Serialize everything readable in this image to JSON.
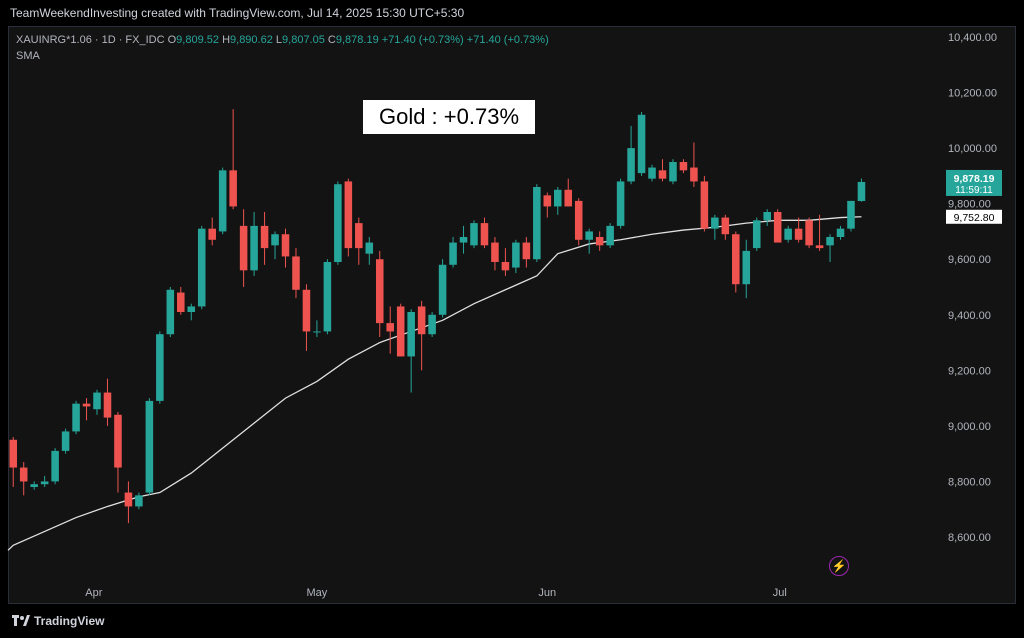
{
  "header": {
    "watermark": "TeamWeekendInvesting created with TradingView.com, Jul 14, 2025 15:30 UTC+5:30"
  },
  "legend": {
    "symbol": "XAUINRG*1.06 · 1D · FX_IDC",
    "o_label": "O",
    "o_value": "9,809.52",
    "h_label": "H",
    "h_value": "9,890.62",
    "l_label": "L",
    "l_value": "9,807.05",
    "c_label": "C",
    "c_value": "9,878.19",
    "change1": "+71.40 (+0.73%)",
    "change2": "+71.40 (+0.73%)",
    "indicator": "SMA"
  },
  "title_box": "Gold : +0.73%",
  "price_badge": {
    "price": "9,878.19",
    "countdown": "11:59:11",
    "sma_value": "9,752.80"
  },
  "footer": {
    "brand": "TradingView"
  },
  "colors": {
    "up": "#26a69a",
    "down": "#ef5350",
    "sma": "#e0e0e0"
  },
  "chart_data": {
    "type": "candlestick",
    "y_ticks": [
      "10,400.00",
      "10,200.00",
      "10,000.00",
      "9,800.00",
      "9,600.00",
      "9,400.00",
      "9,200.00",
      "9,000.00",
      "8,800.00",
      "8,600.00"
    ],
    "y_tick_values": [
      10400,
      10200,
      10000,
      9800,
      9600,
      9400,
      9200,
      9000,
      8800,
      8600
    ],
    "x_labels": [
      "Apr",
      "May",
      "Jun",
      "Jul"
    ],
    "x_label_index": [
      7.7,
      29.0,
      51.0,
      73.2
    ],
    "ylim": [
      8460,
      10440
    ],
    "n_slots": 89,
    "candles": [
      [
        0,
        8950,
        8960,
        8780,
        8850
      ],
      [
        1,
        8850,
        8870,
        8750,
        8800
      ],
      [
        2,
        8780,
        8800,
        8770,
        8790
      ],
      [
        3,
        8790,
        8820,
        8780,
        8800
      ],
      [
        4,
        8800,
        8920,
        8790,
        8910
      ],
      [
        5,
        8910,
        8990,
        8900,
        8980
      ],
      [
        6,
        8980,
        9090,
        8970,
        9080
      ],
      [
        7,
        9080,
        9100,
        9020,
        9070
      ],
      [
        8,
        9060,
        9130,
        9040,
        9120
      ],
      [
        9,
        9120,
        9170,
        9000,
        9030
      ],
      [
        10,
        9040,
        9050,
        8760,
        8850
      ],
      [
        11,
        8760,
        8800,
        8650,
        8710
      ],
      [
        12,
        8710,
        8760,
        8700,
        8750
      ],
      [
        13,
        8760,
        9100,
        8750,
        9090
      ],
      [
        14,
        9090,
        9340,
        9080,
        9330
      ],
      [
        15,
        9330,
        9500,
        9320,
        9490
      ],
      [
        16,
        9480,
        9500,
        9400,
        9410
      ],
      [
        17,
        9410,
        9440,
        9380,
        9430
      ],
      [
        18,
        9430,
        9720,
        9420,
        9710
      ],
      [
        19,
        9710,
        9750,
        9650,
        9670
      ],
      [
        20,
        9700,
        9930,
        9690,
        9920
      ],
      [
        21,
        9920,
        10140,
        9780,
        9790
      ],
      [
        22,
        9720,
        9780,
        9500,
        9560
      ],
      [
        23,
        9560,
        9770,
        9540,
        9720
      ],
      [
        24,
        9720,
        9770,
        9580,
        9640
      ],
      [
        25,
        9650,
        9700,
        9600,
        9690
      ],
      [
        26,
        9690,
        9710,
        9570,
        9610
      ],
      [
        27,
        9610,
        9640,
        9460,
        9490
      ],
      [
        28,
        9490,
        9510,
        9270,
        9340
      ],
      [
        29,
        9340,
        9380,
        9320,
        9340
      ],
      [
        30,
        9340,
        9600,
        9330,
        9590
      ],
      [
        31,
        9590,
        9880,
        9580,
        9870
      ],
      [
        32,
        9880,
        9890,
        9610,
        9640
      ],
      [
        33,
        9730,
        9750,
        9580,
        9640
      ],
      [
        34,
        9620,
        9680,
        9580,
        9660
      ],
      [
        35,
        9600,
        9630,
        9320,
        9370
      ],
      [
        36,
        9370,
        9430,
        9260,
        9340
      ],
      [
        37,
        9430,
        9440,
        9250,
        9250
      ],
      [
        38,
        9250,
        9420,
        9120,
        9410
      ],
      [
        39,
        9430,
        9450,
        9200,
        9330
      ],
      [
        40,
        9330,
        9410,
        9320,
        9400
      ],
      [
        41,
        9400,
        9600,
        9390,
        9580
      ],
      [
        42,
        9580,
        9680,
        9570,
        9660
      ],
      [
        43,
        9660,
        9720,
        9620,
        9680
      ],
      [
        44,
        9650,
        9740,
        9640,
        9730
      ],
      [
        45,
        9730,
        9750,
        9640,
        9650
      ],
      [
        46,
        9660,
        9680,
        9560,
        9590
      ],
      [
        47,
        9590,
        9640,
        9540,
        9560
      ],
      [
        48,
        9570,
        9670,
        9550,
        9660
      ],
      [
        49,
        9660,
        9680,
        9570,
        9600
      ],
      [
        50,
        9600,
        9870,
        9590,
        9860
      ],
      [
        51,
        9830,
        9840,
        9750,
        9790
      ],
      [
        52,
        9790,
        9860,
        9760,
        9850
      ],
      [
        53,
        9850,
        9890,
        9790,
        9790
      ],
      [
        54,
        9810,
        9820,
        9650,
        9670
      ],
      [
        55,
        9670,
        9710,
        9620,
        9700
      ],
      [
        56,
        9680,
        9700,
        9630,
        9650
      ],
      [
        57,
        9650,
        9730,
        9640,
        9720
      ],
      [
        58,
        9720,
        9890,
        9710,
        9880
      ],
      [
        59,
        9880,
        10080,
        9870,
        10000
      ],
      [
        60,
        9910,
        10130,
        9900,
        10120
      ],
      [
        61,
        9890,
        9940,
        9880,
        9930
      ],
      [
        62,
        9920,
        9960,
        9880,
        9890
      ],
      [
        63,
        9880,
        9960,
        9870,
        9950
      ],
      [
        64,
        9950,
        9960,
        9910,
        9920
      ],
      [
        65,
        9930,
        10020,
        9860,
        9880
      ],
      [
        66,
        9880,
        9900,
        9700,
        9710
      ],
      [
        67,
        9710,
        9760,
        9670,
        9750
      ],
      [
        68,
        9750,
        9760,
        9670,
        9690
      ],
      [
        69,
        9690,
        9700,
        9480,
        9510
      ],
      [
        70,
        9510,
        9670,
        9460,
        9630
      ],
      [
        71,
        9640,
        9750,
        9630,
        9740
      ],
      [
        72,
        9740,
        9780,
        9720,
        9770
      ],
      [
        73,
        9770,
        9780,
        9670,
        9660
      ],
      [
        74,
        9670,
        9720,
        9660,
        9710
      ],
      [
        75,
        9710,
        9750,
        9660,
        9670
      ],
      [
        76,
        9740,
        9750,
        9640,
        9650
      ],
      [
        77,
        9650,
        9760,
        9630,
        9640
      ],
      [
        78,
        9650,
        9690,
        9590,
        9680
      ],
      [
        79,
        9680,
        9720,
        9670,
        9710
      ],
      [
        80,
        9710,
        9810,
        9700,
        9810
      ],
      [
        81,
        9809.52,
        9890.62,
        9807.05,
        9878.19
      ]
    ],
    "sma": [
      [
        0,
        8570
      ],
      [
        3,
        8620
      ],
      [
        6,
        8670
      ],
      [
        9,
        8710
      ],
      [
        12,
        8745
      ],
      [
        14,
        8760
      ],
      [
        17,
        8830
      ],
      [
        20,
        8920
      ],
      [
        23,
        9010
      ],
      [
        26,
        9100
      ],
      [
        29,
        9160
      ],
      [
        32,
        9240
      ],
      [
        35,
        9300
      ],
      [
        38,
        9340
      ],
      [
        41,
        9380
      ],
      [
        44,
        9440
      ],
      [
        47,
        9490
      ],
      [
        50,
        9540
      ],
      [
        52,
        9620
      ],
      [
        55,
        9655
      ],
      [
        58,
        9670
      ],
      [
        61,
        9690
      ],
      [
        64,
        9705
      ],
      [
        67,
        9715
      ],
      [
        70,
        9730
      ],
      [
        73,
        9740
      ],
      [
        76,
        9740
      ],
      [
        79,
        9750
      ],
      [
        81,
        9753
      ]
    ],
    "last_price": 9878.19,
    "sma_last": 9752.8
  }
}
